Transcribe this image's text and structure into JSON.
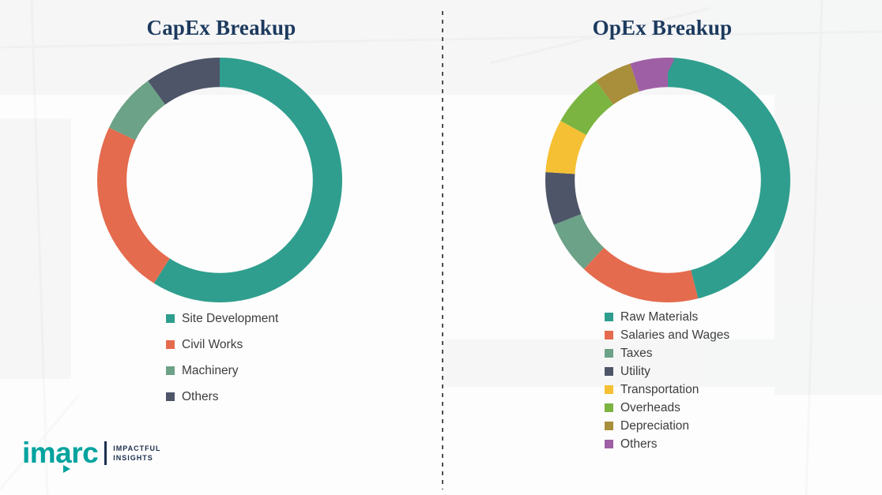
{
  "brand": {
    "logo_text": "imarc",
    "tagline_line1": "IMPACTFUL",
    "tagline_line2": "INSIGHTS",
    "teal": "#00a39e",
    "navy": "#1c2f4e",
    "title_color": "#1c3a5e"
  },
  "chart_data": [
    {
      "type": "pie",
      "donut": true,
      "title": "CapEx Breakup",
      "legend_position": "bottom",
      "categories": [
        "Site Development",
        "Civil Works",
        "Machinery",
        "Others"
      ],
      "values": [
        59,
        23,
        8,
        10
      ],
      "colors": [
        "#2f9e8e",
        "#e56b4e",
        "#6ca287",
        "#4e5568"
      ]
    },
    {
      "type": "pie",
      "donut": true,
      "title": "OpEx Breakup",
      "legend_position": "bottom",
      "categories": [
        "Raw Materials",
        "Salaries and Wages",
        "Taxes",
        "Utility",
        "Transportation",
        "Overheads",
        "Depreciation",
        "Others"
      ],
      "values": [
        46,
        16,
        7,
        7,
        7,
        7,
        5,
        5
      ],
      "colors": [
        "#2f9e8e",
        "#e56b4e",
        "#6ca287",
        "#4e5568",
        "#f5c033",
        "#7bb441",
        "#a98e3c",
        "#9f5fa5"
      ]
    }
  ]
}
